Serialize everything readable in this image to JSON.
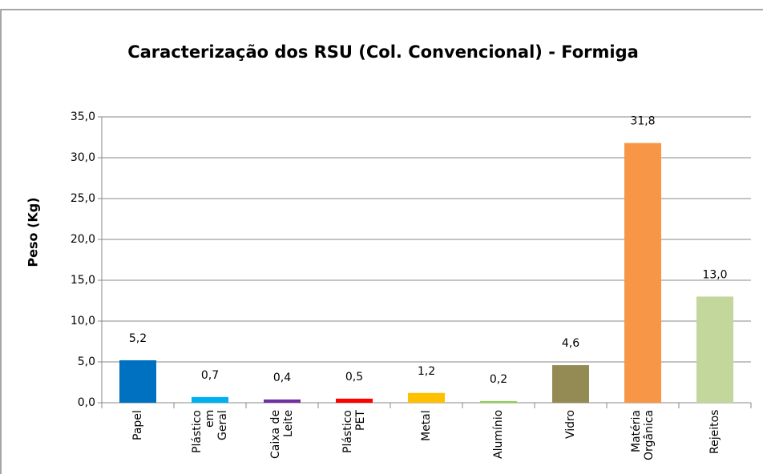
{
  "chart_data": {
    "type": "bar",
    "title": "Caracterização dos RSU (Col. Convencional) - Formiga",
    "y_label": "Peso (Kg)",
    "categories": [
      "Papel",
      "Plástico em Geral",
      "Caixa de Leite",
      "Plástico PET",
      "Metal",
      "Alumínio",
      "Vidro",
      "Matéria Orgânica",
      "Rejeitos"
    ],
    "values": [
      5.2,
      0.7,
      0.4,
      0.5,
      1.2,
      0.2,
      4.6,
      31.8,
      13.0
    ],
    "value_labels": [
      "5,2",
      "0,7",
      "0,4",
      "0,5",
      "1,2",
      "0,2",
      "4,6",
      "31,8",
      "13,0"
    ],
    "colors": [
      "#0070c0",
      "#00b0f0",
      "#7030a0",
      "#ff0000",
      "#ffc000",
      "#92d050",
      "#948a54",
      "#f79646",
      "#c3d69b"
    ],
    "ylim": [
      0,
      35
    ],
    "yticks": [
      {
        "value": 0,
        "label": "0,0"
      },
      {
        "value": 5,
        "label": "5,0"
      },
      {
        "value": 10,
        "label": "10,0"
      },
      {
        "value": 15,
        "label": "15,0"
      },
      {
        "value": 20,
        "label": "20,0"
      },
      {
        "value": 25,
        "label": "25,0"
      },
      {
        "value": 30,
        "label": "30,0"
      },
      {
        "value": 35,
        "label": "35,0"
      }
    ],
    "grid": true
  }
}
